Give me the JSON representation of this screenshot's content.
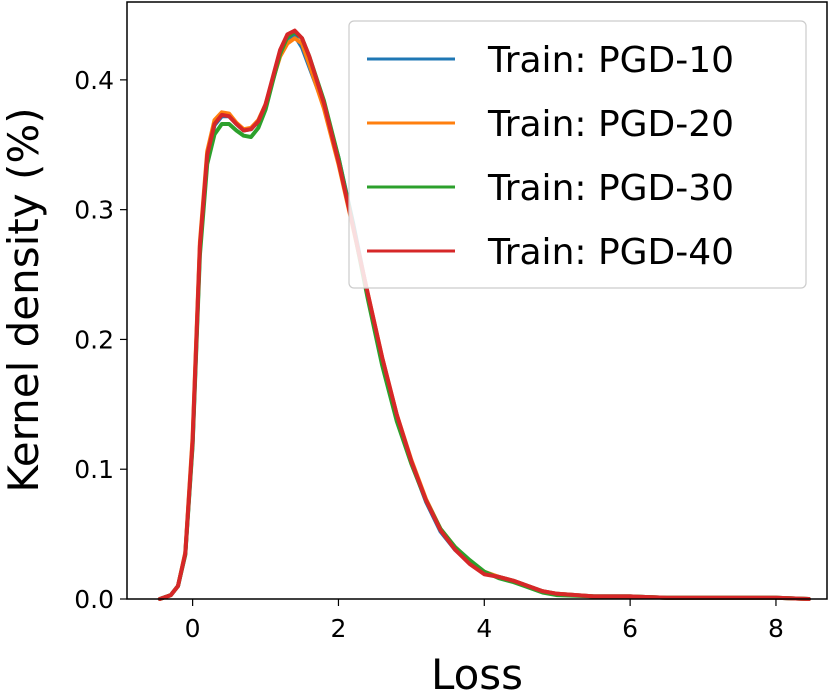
{
  "chart_data": {
    "type": "line",
    "title": "",
    "xlabel": "Loss",
    "ylabel": "Kernel density (%)",
    "xlim": [
      -0.9,
      8.7
    ],
    "ylim": [
      0.0,
      0.46
    ],
    "xticks": [
      0,
      2,
      4,
      6,
      8
    ],
    "yticks": [
      0.0,
      0.1,
      0.2,
      0.3,
      0.4
    ],
    "xtick_labels": [
      "0",
      "2",
      "4",
      "6",
      "8"
    ],
    "ytick_labels": [
      "0.0",
      "0.1",
      "0.2",
      "0.3",
      "0.4"
    ],
    "grid": false,
    "legend_position": "top-right",
    "series": [
      {
        "name": "Train: PGD-10",
        "color": "#1f77b4",
        "x": [
          -0.45,
          -0.3,
          -0.2,
          -0.1,
          0.0,
          0.1,
          0.2,
          0.3,
          0.4,
          0.5,
          0.6,
          0.7,
          0.8,
          0.9,
          1.0,
          1.1,
          1.2,
          1.3,
          1.4,
          1.5,
          1.6,
          1.8,
          2.0,
          2.2,
          2.4,
          2.6,
          2.8,
          3.0,
          3.2,
          3.4,
          3.6,
          3.8,
          4.0,
          4.2,
          4.4,
          4.6,
          4.8,
          5.0,
          5.5,
          6.0,
          6.5,
          7.0,
          7.5,
          8.0,
          8.45
        ],
        "y": [
          0.0,
          0.003,
          0.01,
          0.035,
          0.12,
          0.27,
          0.34,
          0.365,
          0.372,
          0.372,
          0.366,
          0.361,
          0.362,
          0.368,
          0.38,
          0.4,
          0.42,
          0.432,
          0.434,
          0.425,
          0.41,
          0.38,
          0.34,
          0.29,
          0.235,
          0.185,
          0.14,
          0.105,
          0.075,
          0.052,
          0.038,
          0.028,
          0.02,
          0.017,
          0.014,
          0.01,
          0.006,
          0.004,
          0.002,
          0.002,
          0.001,
          0.001,
          0.001,
          0.001,
          0.0
        ]
      },
      {
        "name": "Train: PGD-20",
        "color": "#ff7f0e",
        "x": [
          -0.45,
          -0.3,
          -0.2,
          -0.1,
          0.0,
          0.1,
          0.2,
          0.3,
          0.4,
          0.5,
          0.6,
          0.7,
          0.8,
          0.9,
          1.0,
          1.1,
          1.2,
          1.3,
          1.4,
          1.5,
          1.6,
          1.8,
          2.0,
          2.2,
          2.4,
          2.6,
          2.8,
          3.0,
          3.2,
          3.4,
          3.6,
          3.8,
          4.0,
          4.2,
          4.4,
          4.6,
          4.8,
          5.0,
          5.5,
          6.0,
          6.5,
          7.0,
          7.5,
          8.0,
          8.45
        ],
        "y": [
          0.0,
          0.003,
          0.01,
          0.036,
          0.125,
          0.275,
          0.345,
          0.369,
          0.375,
          0.374,
          0.367,
          0.362,
          0.363,
          0.369,
          0.381,
          0.4,
          0.418,
          0.428,
          0.432,
          0.428,
          0.412,
          0.378,
          0.335,
          0.286,
          0.236,
          0.186,
          0.142,
          0.107,
          0.077,
          0.054,
          0.04,
          0.029,
          0.021,
          0.017,
          0.014,
          0.01,
          0.006,
          0.004,
          0.002,
          0.002,
          0.001,
          0.001,
          0.001,
          0.001,
          0.0
        ]
      },
      {
        "name": "Train: PGD-30",
        "color": "#2ca02c",
        "x": [
          -0.45,
          -0.3,
          -0.2,
          -0.1,
          0.0,
          0.1,
          0.2,
          0.3,
          0.4,
          0.5,
          0.6,
          0.7,
          0.8,
          0.9,
          1.0,
          1.1,
          1.2,
          1.3,
          1.4,
          1.5,
          1.6,
          1.8,
          2.0,
          2.2,
          2.4,
          2.6,
          2.8,
          3.0,
          3.2,
          3.4,
          3.6,
          3.8,
          4.0,
          4.2,
          4.4,
          4.6,
          4.8,
          5.0,
          5.5,
          6.0,
          6.5,
          7.0,
          7.5,
          8.0,
          8.45
        ],
        "y": [
          0.0,
          0.003,
          0.01,
          0.034,
          0.118,
          0.265,
          0.335,
          0.358,
          0.366,
          0.366,
          0.361,
          0.357,
          0.356,
          0.363,
          0.377,
          0.399,
          0.42,
          0.433,
          0.437,
          0.432,
          0.418,
          0.384,
          0.34,
          0.288,
          0.232,
          0.18,
          0.137,
          0.104,
          0.076,
          0.054,
          0.04,
          0.03,
          0.021,
          0.016,
          0.013,
          0.009,
          0.005,
          0.003,
          0.002,
          0.002,
          0.001,
          0.001,
          0.001,
          0.001,
          0.0
        ]
      },
      {
        "name": "Train: PGD-40",
        "color": "#d62728",
        "x": [
          -0.45,
          -0.3,
          -0.2,
          -0.1,
          0.0,
          0.1,
          0.2,
          0.3,
          0.4,
          0.5,
          0.6,
          0.7,
          0.8,
          0.9,
          1.0,
          1.1,
          1.2,
          1.3,
          1.4,
          1.5,
          1.6,
          1.8,
          2.0,
          2.2,
          2.4,
          2.6,
          2.8,
          3.0,
          3.2,
          3.4,
          3.6,
          3.8,
          4.0,
          4.2,
          4.4,
          4.6,
          4.8,
          5.0,
          5.5,
          6.0,
          6.5,
          7.0,
          7.5,
          8.0,
          8.45
        ],
        "y": [
          0.0,
          0.003,
          0.01,
          0.035,
          0.122,
          0.272,
          0.342,
          0.366,
          0.373,
          0.372,
          0.366,
          0.361,
          0.362,
          0.368,
          0.381,
          0.402,
          0.423,
          0.435,
          0.438,
          0.432,
          0.418,
          0.382,
          0.337,
          0.287,
          0.236,
          0.186,
          0.142,
          0.106,
          0.076,
          0.053,
          0.038,
          0.027,
          0.019,
          0.017,
          0.014,
          0.01,
          0.006,
          0.004,
          0.002,
          0.002,
          0.001,
          0.001,
          0.001,
          0.001,
          0.0
        ]
      }
    ]
  }
}
